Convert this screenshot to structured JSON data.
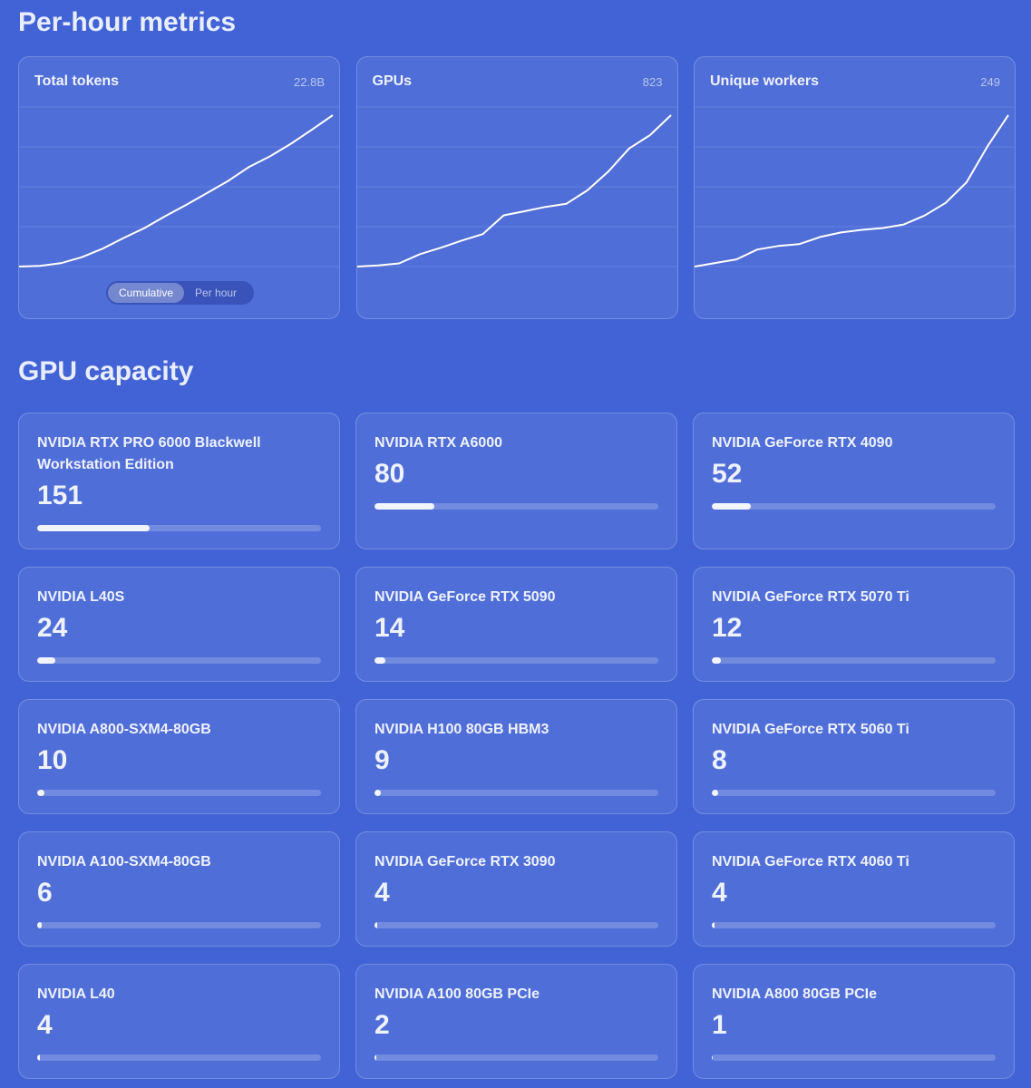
{
  "metrics": {
    "title": "Per-hour metrics",
    "toggle": [
      "Cumulative",
      "Per hour"
    ],
    "charts": [
      {
        "type": "line",
        "label": "Total tokens",
        "total": "22.8B",
        "values": [
          0,
          0.1,
          0.5,
          1.4,
          2.7,
          4.3,
          5.8,
          7.6,
          9.3,
          11.1,
          12.9,
          15.0,
          16.6,
          18.5,
          20.6,
          22.8
        ]
      },
      {
        "type": "line",
        "label": "GPUs",
        "total": "823",
        "values": [
          300,
          304,
          311,
          343,
          365,
          390,
          412,
          477,
          491,
          506,
          517,
          563,
          628,
          708,
          754,
          823
        ]
      },
      {
        "type": "line",
        "label": "Unique workers",
        "total": "249",
        "values": [
          80,
          84,
          88,
          99,
          103,
          105,
          113,
          118,
          121,
          123,
          127,
          137,
          151,
          174,
          214,
          249
        ]
      }
    ]
  },
  "capacity": {
    "title": "GPU capacity",
    "gpus": [
      {
        "name": "NVIDIA RTX PRO 6000 Blackwell Workstation Edition",
        "count": 151
      },
      {
        "name": "NVIDIA RTX A6000",
        "count": 80
      },
      {
        "name": "NVIDIA GeForce RTX 4090",
        "count": 52
      },
      {
        "name": "NVIDIA L40S",
        "count": 24
      },
      {
        "name": "NVIDIA GeForce RTX 5090",
        "count": 14
      },
      {
        "name": "NVIDIA GeForce RTX 5070 Ti",
        "count": 12
      },
      {
        "name": "NVIDIA A800-SXM4-80GB",
        "count": 10
      },
      {
        "name": "NVIDIA H100 80GB HBM3",
        "count": 9
      },
      {
        "name": "NVIDIA GeForce RTX 5060 Ti",
        "count": 8
      },
      {
        "name": "NVIDIA A100-SXM4-80GB",
        "count": 6
      },
      {
        "name": "NVIDIA GeForce RTX 3090",
        "count": 4
      },
      {
        "name": "NVIDIA GeForce RTX 4060 Ti",
        "count": 4
      },
      {
        "name": "NVIDIA L40",
        "count": 4
      },
      {
        "name": "NVIDIA A100 80GB PCIe",
        "count": 2
      },
      {
        "name": "NVIDIA A800 80GB PCIe",
        "count": 1
      }
    ]
  }
}
